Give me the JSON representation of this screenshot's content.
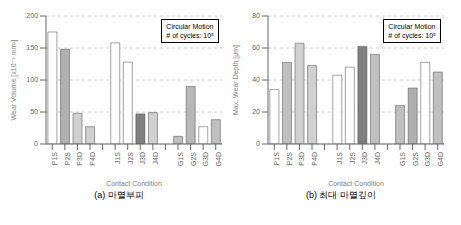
{
  "chart_data": [
    {
      "type": "bar",
      "subtitle": "(a)  마멸부피",
      "xlabel": "Contact Condition",
      "ylabel": "Wear Volume [x10⁻³ mm³]",
      "ylim": [
        0,
        200
      ],
      "yticks": [
        0,
        50,
        100,
        150,
        200
      ],
      "grid": true,
      "annotations": [
        "Circular Motion",
        "# of cycles: 10⁵"
      ],
      "categories": [
        "P1S",
        "P2S",
        "P3D",
        "P4D",
        null,
        "J1S",
        "J2S",
        "J3D",
        "J4D",
        null,
        "G1S",
        "G2S",
        "G3D",
        "G4D"
      ],
      "values": [
        175,
        148,
        48,
        27,
        null,
        158,
        128,
        47,
        49,
        null,
        12,
        90,
        27,
        38
      ],
      "colors": [
        "white",
        "#b0b0b0",
        "#d0d0d0",
        "#d0d0d0",
        null,
        "white",
        "white",
        "#808080",
        "#d0d0d0",
        null,
        "#c0c0c0",
        "#b8b8b8",
        "white",
        "#c0c0c0"
      ]
    },
    {
      "type": "bar",
      "subtitle": "(b)  최대 마멸깊이",
      "xlabel": "Contact Condition",
      "ylabel": "Max. Wear Depth [μm]",
      "ylim": [
        0,
        80
      ],
      "yticks": [
        0,
        20,
        40,
        60,
        80
      ],
      "grid": true,
      "annotations": [
        "Circular Motion",
        "# of cycles: 10⁵"
      ],
      "categories": [
        "P1S",
        "P2S",
        "P3D",
        "P4D",
        null,
        "J1S",
        "J2S",
        "J3D",
        "J4D",
        null,
        "G1S",
        "G2S",
        "G3D",
        "G4D"
      ],
      "values": [
        34,
        51,
        63,
        49,
        null,
        43,
        48,
        61,
        56,
        null,
        24,
        35,
        51,
        45
      ],
      "colors": [
        "white",
        "#c0c0c0",
        "#d0d0d0",
        "#d0d0d0",
        null,
        "white",
        "white",
        "#808080",
        "#c0c0c0",
        null,
        "#c0c0c0",
        "#b0b0b0",
        "white",
        "#c0c0c0"
      ]
    }
  ]
}
